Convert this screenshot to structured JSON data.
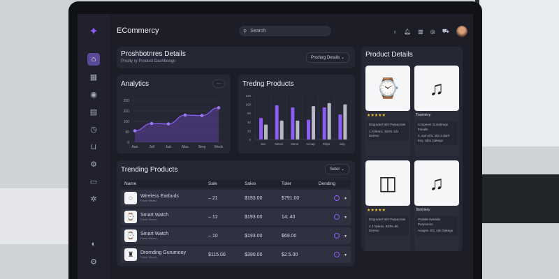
{
  "header": {
    "app_title": "ECommercy",
    "search_placeholder": "Search",
    "icons": [
      "lightbulb-icon",
      "bell-icon",
      "chart-icon",
      "user-shield-icon",
      "cart-icon"
    ]
  },
  "sidebar": {
    "icons": [
      "logo-icon",
      "home-icon",
      "grid-icon",
      "globe-icon",
      "document-icon",
      "clock-icon",
      "basket-icon",
      "settings-icon",
      "camera-icon",
      "gear-icon",
      "moon-icon",
      "cog-icon"
    ]
  },
  "title_card": {
    "title": "Proshbotnres Details",
    "subtitle": "Prodly ry Product Dashboogn",
    "dropdown": "Produrg Details"
  },
  "analytics": {
    "title": "Analytics",
    "menu": "···"
  },
  "trending_chart": {
    "title": "Tredng Products"
  },
  "chart_data": [
    {
      "type": "area",
      "title": "Analytics",
      "categories": [
        "Aan",
        "Jull",
        "Jurt",
        "Mus",
        "Serg",
        "Meck"
      ],
      "y_tick_labels": [
        "0",
        "90",
        "100",
        "200",
        "200"
      ],
      "values": [
        55,
        90,
        88,
        130,
        128,
        165
      ],
      "ylim": [
        0,
        200
      ],
      "grid": true,
      "color": "#8b5cf6"
    },
    {
      "type": "bar",
      "title": "Tredng Products",
      "categories": [
        "Jun",
        "Mend",
        "Mens",
        "Acnap",
        "Filips",
        "July"
      ],
      "y_tick_labels": [
        "0",
        "20",
        "40",
        "80",
        "100",
        "100"
      ],
      "series": [
        {
          "values": [
            49,
            78,
            73,
            45,
            73,
            57
          ],
          "color": "#8b5cf6"
        },
        {
          "values": [
            34,
            43,
            43,
            76,
            83,
            80
          ],
          "color": "#b8b8c4"
        }
      ],
      "ylim": [
        0,
        100
      ],
      "grid": true
    }
  ],
  "table": {
    "title": "Trending Products",
    "filter": "Setor",
    "columns": [
      "Name",
      "Sale",
      "Sales",
      "Toler",
      "Dending"
    ],
    "rows": [
      {
        "name": "Wireless Earbuds",
        "sub": "Fanm Wezzo",
        "sale": "– 21",
        "sales": "$193.00",
        "toler": "$791.00",
        "icon": "earbuds"
      },
      {
        "name": "Smart Watch",
        "sub": "Fanm Wezzo",
        "sale": "– 12",
        "sales": "$193.00",
        "toler": "14:.40",
        "icon": "watch"
      },
      {
        "name": "Smart Watch",
        "sub": "Fanm Wezzo",
        "sale": "– 10",
        "sales": "$193.00",
        "toler": "$69.00",
        "icon": "watch"
      },
      {
        "name": "Dromding Gurumooy",
        "sub": "Fanm Wezzo",
        "sale": "$115.00",
        "sales": "$390.00",
        "toler": "$2.5.00",
        "icon": "bag"
      }
    ]
  },
  "product_details": {
    "title": "Product Details",
    "cards": [
      {
        "image": "smart-watch",
        "label": "★★★★★",
        "desc1": "Degraded Nith Parpaorats",
        "desc2": "1 Achemx. 923% 101 Dereso"
      },
      {
        "image": "earbuds",
        "label": "Tourriery",
        "desc1": "Conpever Gurediregn Fsnalls",
        "desc2": "3. sarn 9/3, nitn 3 darrt Exy, sdhn Dakego"
      },
      {
        "image": "earbuds-case",
        "label": "★★★★★",
        "desc1": "Degraded Nith Parpaorats",
        "desc2": "4.2 Yperex. 923% 80 Dereso"
      },
      {
        "image": "earbuds",
        "label": "Stotriery",
        "desc1": "Podalle Ilvertdie Porpsonns",
        "desc2": "Anagss. 6/3, nitn Dakego"
      }
    ]
  }
}
